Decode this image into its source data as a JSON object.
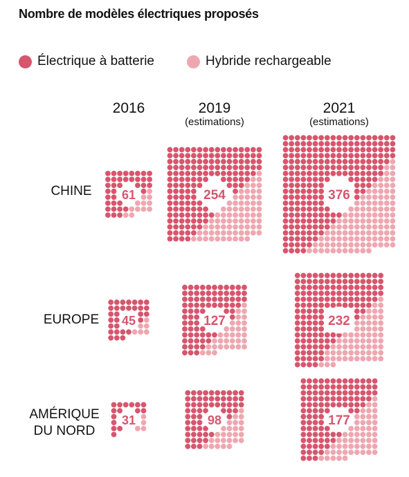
{
  "chart_data": {
    "type": "waffle",
    "title": "Nombre de modèles électriques proposés",
    "legend": [
      {
        "name": "Électrique à batterie",
        "color": "#d6566d"
      },
      {
        "name": "Hybride rechargeable",
        "color": "#eea7b0"
      }
    ],
    "columns": [
      {
        "year": "2016",
        "note": ""
      },
      {
        "year": "2019",
        "note": "(estimations)"
      },
      {
        "year": "2021",
        "note": "(estimations)"
      }
    ],
    "rows": [
      "CHINE",
      "EUROPE",
      "AMÉRIQUE DU NORD"
    ],
    "rows_display": [
      [
        "CHINE"
      ],
      [
        "EUROPE"
      ],
      [
        "AMÉRIQUE",
        "DU NORD"
      ]
    ],
    "values": [
      [
        61,
        254,
        376
      ],
      [
        45,
        127,
        232
      ],
      [
        31,
        98,
        177
      ]
    ]
  }
}
